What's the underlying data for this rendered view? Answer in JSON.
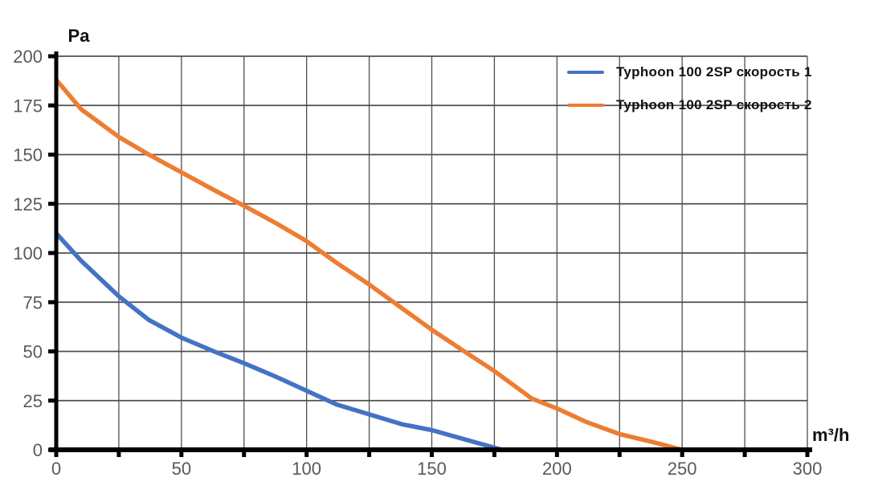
{
  "chart_data": {
    "type": "line",
    "title": "",
    "xlabel": "m³/h",
    "ylabel": "Pa",
    "xlim": [
      0,
      300
    ],
    "ylim": [
      0,
      200
    ],
    "x_ticks": [
      0,
      50,
      100,
      150,
      200,
      250,
      300
    ],
    "y_ticks": [
      0,
      25,
      50,
      75,
      100,
      125,
      150,
      175,
      200
    ],
    "x_grid_step": 25,
    "y_grid_step": 25,
    "grid": true,
    "legend_position": "top-right",
    "colors": {
      "axis": "#000000",
      "gridline": "#4f4f4f",
      "tick_label": "#595959"
    },
    "series": [
      {
        "name": "Typhoon 100 2SP скорость 1",
        "color": "#4472C4",
        "points": [
          [
            0,
            110
          ],
          [
            10,
            96
          ],
          [
            25,
            78
          ],
          [
            37,
            66
          ],
          [
            50,
            57
          ],
          [
            63,
            50
          ],
          [
            75,
            44
          ],
          [
            88,
            37
          ],
          [
            100,
            30
          ],
          [
            112,
            23
          ],
          [
            125,
            18
          ],
          [
            138,
            13
          ],
          [
            150,
            10
          ],
          [
            164,
            5
          ],
          [
            178,
            0
          ]
        ]
      },
      {
        "name": "Typhoon 100 2SP скорость 2",
        "color": "#ED7D31",
        "points": [
          [
            0,
            188
          ],
          [
            10,
            173
          ],
          [
            25,
            159
          ],
          [
            37,
            150
          ],
          [
            50,
            141
          ],
          [
            63,
            132
          ],
          [
            75,
            124
          ],
          [
            88,
            115
          ],
          [
            100,
            106
          ],
          [
            112,
            95
          ],
          [
            125,
            84
          ],
          [
            138,
            72
          ],
          [
            150,
            61
          ],
          [
            163,
            50
          ],
          [
            175,
            40
          ],
          [
            190,
            26
          ],
          [
            200,
            21
          ],
          [
            212,
            14
          ],
          [
            225,
            8
          ],
          [
            238,
            4
          ],
          [
            250,
            0
          ]
        ]
      }
    ]
  }
}
